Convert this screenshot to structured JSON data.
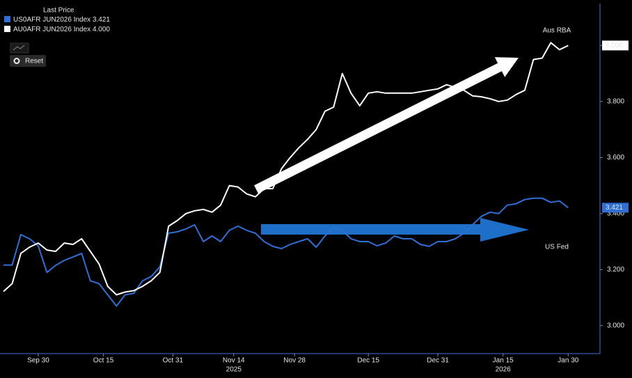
{
  "toolbar": {
    "reset": "Reset"
  },
  "chart_data": {
    "type": "line",
    "legend_title": "Last Price",
    "yaxis_position": "right",
    "grid": false,
    "x": [
      "2025-09-22",
      "2025-09-24",
      "2025-09-26",
      "2025-09-28",
      "2025-09-30",
      "2025-10-02",
      "2025-10-04",
      "2025-10-06",
      "2025-10-08",
      "2025-10-10",
      "2025-10-12",
      "2025-10-14",
      "2025-10-16",
      "2025-10-18",
      "2025-10-20",
      "2025-10-22",
      "2025-10-24",
      "2025-10-26",
      "2025-10-28",
      "2025-10-30",
      "2025-11-01",
      "2025-11-03",
      "2025-11-05",
      "2025-11-07",
      "2025-11-09",
      "2025-11-11",
      "2025-11-13",
      "2025-11-15",
      "2025-11-17",
      "2025-11-19",
      "2025-11-21",
      "2025-11-23",
      "2025-11-25",
      "2025-11-27",
      "2025-11-29",
      "2025-12-01",
      "2025-12-03",
      "2025-12-05",
      "2025-12-07",
      "2025-12-09",
      "2025-12-11",
      "2025-12-13",
      "2025-12-15",
      "2025-12-17",
      "2025-12-19",
      "2025-12-21",
      "2025-12-23",
      "2025-12-25",
      "2025-12-27",
      "2025-12-29",
      "2025-12-31",
      "2026-01-02",
      "2026-01-04",
      "2026-01-06",
      "2026-01-08",
      "2026-01-10",
      "2026-01-12",
      "2026-01-14",
      "2026-01-16",
      "2026-01-18",
      "2026-01-20",
      "2026-01-22",
      "2026-01-24",
      "2026-01-26",
      "2026-01-28",
      "2026-01-30"
    ],
    "xlim": [
      "2025-09-22",
      "2026-02-06"
    ],
    "xticks": [
      {
        "value": "2025-09-30",
        "label": "Sep 30"
      },
      {
        "value": "2025-10-15",
        "label": "Oct 15"
      },
      {
        "value": "2025-10-31",
        "label": "Oct 31"
      },
      {
        "value": "2025-11-14",
        "label": "Nov 14"
      },
      {
        "value": "2025-11-28",
        "label": "Nov 28"
      },
      {
        "value": "2025-12-15",
        "label": "Dec 15"
      },
      {
        "value": "2025-12-31",
        "label": "Dec 31"
      },
      {
        "value": "2026-01-15",
        "label": "Jan 15"
      },
      {
        "value": "2026-01-30",
        "label": "Jan 30"
      }
    ],
    "year_ticks": [
      {
        "value": "2025-11-14",
        "label": "2025"
      },
      {
        "value": "2026-01-15",
        "label": "2026"
      }
    ],
    "ylim": [
      2.9,
      4.15
    ],
    "yticks": [
      {
        "value": 3,
        "label": "3.000"
      },
      {
        "value": 3.2,
        "label": "3.200"
      },
      {
        "value": 3.4,
        "label": "3.400"
      },
      {
        "value": 3.6,
        "label": "3.600"
      },
      {
        "value": 3.8,
        "label": "3.800"
      },
      {
        "value": 4,
        "label": "4.000"
      }
    ],
    "series": [
      {
        "name": "US0AFR JUN2026 Index",
        "color": "#2f6fd6",
        "values": [
          3.216,
          3.216,
          3.325,
          3.31,
          3.285,
          3.19,
          3.215,
          3.233,
          3.245,
          3.258,
          3.16,
          3.15,
          3.11,
          3.07,
          3.11,
          3.115,
          3.16,
          3.175,
          3.21,
          3.33,
          3.335,
          3.345,
          3.36,
          3.3,
          3.32,
          3.3,
          3.34,
          3.355,
          3.34,
          3.33,
          3.3,
          3.283,
          3.275,
          3.29,
          3.3,
          3.31,
          3.28,
          3.32,
          3.35,
          3.34,
          3.31,
          3.3,
          3.3,
          3.285,
          3.295,
          3.32,
          3.31,
          3.31,
          3.29,
          3.283,
          3.3,
          3.3,
          3.31,
          3.33,
          3.36,
          3.39,
          3.405,
          3.4,
          3.43,
          3.435,
          3.45,
          3.455,
          3.455,
          3.44,
          3.445,
          3.421
        ]
      },
      {
        "name": "AU0AFR JUN2026 Index",
        "color": "#ffffff",
        "values": [
          3.122,
          3.15,
          3.258,
          3.28,
          3.295,
          3.27,
          3.265,
          3.295,
          3.29,
          3.31,
          3.265,
          3.22,
          3.14,
          3.11,
          3.12,
          3.125,
          3.14,
          3.16,
          3.19,
          3.355,
          3.375,
          3.4,
          3.41,
          3.415,
          3.405,
          3.43,
          3.5,
          3.495,
          3.47,
          3.46,
          3.489,
          3.489,
          3.56,
          3.6,
          3.635,
          3.665,
          3.7,
          3.765,
          3.78,
          3.9,
          3.83,
          3.785,
          3.83,
          3.835,
          3.83,
          3.83,
          3.83,
          3.83,
          3.835,
          3.84,
          3.845,
          3.86,
          3.85,
          3.84,
          3.82,
          3.817,
          3.81,
          3.8,
          3.805,
          3.825,
          3.84,
          3.95,
          3.955,
          4.01,
          3.985,
          4.0
        ],
        "value_labels": [
          null,
          null,
          null,
          null,
          null,
          null,
          null,
          null,
          null,
          null,
          null,
          null,
          null,
          null,
          null,
          null,
          null,
          null,
          null,
          null,
          null,
          null,
          null,
          null,
          null,
          null,
          null,
          null,
          null,
          null,
          null,
          null,
          null,
          null,
          null,
          null,
          null,
          null,
          null,
          null,
          null,
          null,
          null,
          null,
          null,
          null,
          null,
          null,
          null,
          null,
          null,
          null,
          null,
          null,
          null,
          null,
          null,
          null,
          null,
          null,
          null,
          null,
          null,
          null,
          null,
          "4.000"
        ]
      }
    ],
    "annotations": [
      {
        "text": "Aus RBA",
        "color": "#ffffff"
      },
      {
        "text": "US Fed",
        "color": "#3f86e0"
      }
    ]
  }
}
